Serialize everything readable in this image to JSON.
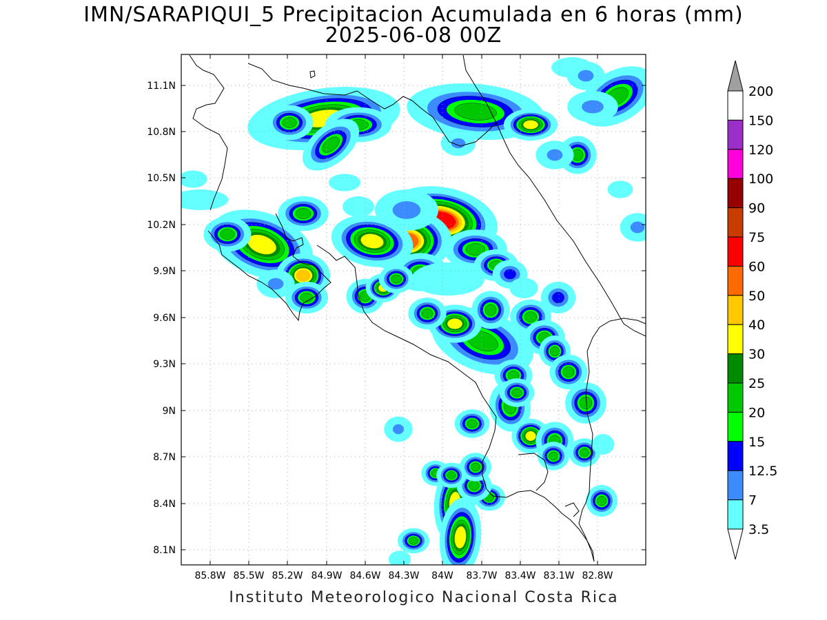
{
  "title": {
    "line1": "IMN/SARAPIQUI_5 Precipitacion Acumulada en 6 horas (mm)",
    "line2": "2025-06-08 00Z"
  },
  "footer": "Instituto Meteorologico Nacional Costa Rica",
  "map": {
    "lat_labels": [
      "11.1N",
      "10.8N",
      "10.5N",
      "10.2N",
      "9.9N",
      "9.6N",
      "9.3N",
      "9N",
      "8.7N",
      "8.4N",
      "8.1N"
    ],
    "lon_labels": [
      "85.8W",
      "85.5W",
      "85.2W",
      "84.9W",
      "84.6W",
      "84.3W",
      "84W",
      "83.7W",
      "83.4W",
      "83.1W",
      "82.8W"
    ],
    "grid": "dotted"
  },
  "colorbar": {
    "labels": [
      "200",
      "150",
      "120",
      "100",
      "90",
      "75",
      "60",
      "50",
      "40",
      "30",
      "25",
      "20",
      "15",
      "12.5",
      "7",
      "3.5"
    ],
    "colors": [
      "#ffffff",
      "#9b30c8",
      "#ff00dd",
      "#960000",
      "#c83c00",
      "#ff0000",
      "#ff6a00",
      "#ffc800",
      "#ffff00",
      "#008a00",
      "#00c800",
      "#00ff00",
      "#0000ff",
      "#3c8cff",
      "#64ffff"
    ],
    "over_color": "#a0a0a0",
    "under_color": "#ffffff"
  }
}
